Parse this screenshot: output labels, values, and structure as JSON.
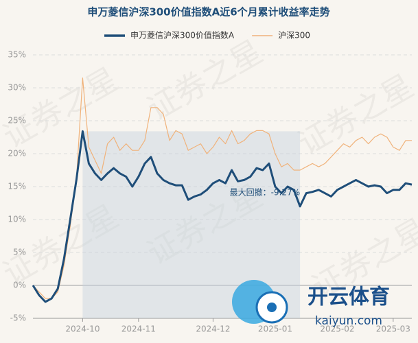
{
  "chart_data": {
    "type": "line",
    "title": "申万菱信沪深300价值指数A近6个月累计收益率走势",
    "categories": [
      null,
      null,
      null,
      null,
      null,
      null,
      null,
      null,
      "2024-10",
      null,
      null,
      null,
      null,
      null,
      null,
      null,
      null,
      "2024-11",
      null,
      null,
      null,
      null,
      null,
      null,
      null,
      null,
      null,
      null,
      null,
      "2024-12",
      null,
      null,
      null,
      null,
      null,
      null,
      null,
      null,
      null,
      "2025-01",
      null,
      null,
      null,
      null,
      null,
      null,
      null,
      null,
      null,
      "2025-02",
      null,
      null,
      null,
      null,
      null,
      null,
      null,
      null,
      "2025-03",
      null,
      null,
      null
    ],
    "series": [
      {
        "name": "申万菱信沪深300价值指数A",
        "color": "#1f4e79",
        "values": [
          0,
          -1.5,
          -2.5,
          -2,
          -0.5,
          4,
          10,
          16,
          23.4,
          18.5,
          17,
          16,
          17,
          17.8,
          17,
          16.5,
          15,
          16.5,
          18.5,
          19.5,
          17,
          16,
          15.5,
          15.2,
          15.2,
          13,
          13.5,
          13.8,
          14.5,
          15.5,
          16,
          15.5,
          17.5,
          15.8,
          16,
          16.5,
          17.8,
          17.5,
          18.5,
          15,
          14,
          15,
          14.5,
          12,
          14,
          14.2,
          14.5,
          14,
          13.5,
          14.5,
          15,
          15.5,
          16,
          15.5,
          15,
          15.2,
          15,
          14,
          14.5,
          14.5,
          15.5,
          15.3
        ]
      },
      {
        "name": "沪深300",
        "color": "#f0b27a",
        "values": [
          0,
          -1,
          -2,
          -2,
          -1,
          3,
          9,
          16,
          31.5,
          21,
          19,
          17,
          21.5,
          22.5,
          20.5,
          21.5,
          20.5,
          20.5,
          22,
          27,
          27,
          26,
          22,
          23.5,
          23,
          20.5,
          21,
          21.5,
          20,
          21,
          22.5,
          21.5,
          23.5,
          21.5,
          22,
          23,
          23.5,
          23.5,
          23,
          20,
          18,
          18.5,
          17.5,
          17.5,
          18,
          18.5,
          18,
          18.5,
          19.5,
          20.5,
          21.5,
          21,
          22,
          22.5,
          21.5,
          22.5,
          23,
          22.5,
          21,
          20.5,
          22,
          22
        ]
      }
    ],
    "annotation": "最大回撤：-9.27%",
    "ylim": [
      -5,
      35
    ],
    "yticks": [
      {
        "value": -5,
        "label": "-5%"
      },
      {
        "value": 0,
        "label": "0%"
      },
      {
        "value": 5,
        "label": "5%"
      },
      {
        "value": 10,
        "label": "10%"
      },
      {
        "value": 15,
        "label": "15%"
      },
      {
        "value": 20,
        "label": "20%"
      },
      {
        "value": 25,
        "label": "25%"
      },
      {
        "value": 30,
        "label": "30%"
      },
      {
        "value": 35,
        "label": "35%"
      }
    ],
    "grid": true,
    "legend": "top"
  },
  "watermark": "证券之星",
  "logo": [
    "开云体育",
    "kaiyun.com"
  ]
}
